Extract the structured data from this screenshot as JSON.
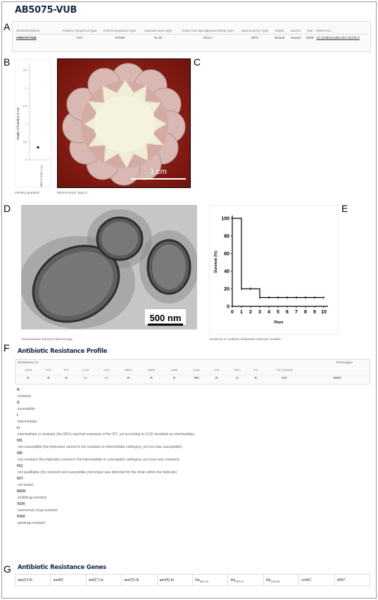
{
  "title": "AB5075-VUB",
  "panels": {
    "a": "A",
    "b": "B",
    "c": "C",
    "d": "D",
    "e": "E",
    "f": "F",
    "g": "G"
  },
  "strain_table": {
    "headers": [
      "Strain/GenBank",
      "Pasteur Sequence type",
      "Oxford Sequence type",
      "Capsule locus type",
      "Outer core lipooligosaccharide type",
      "Macrocolony Type",
      "Origin",
      "Source",
      "Year",
      "Reference"
    ],
    "row": {
      "strain": "AB5075-VUB",
      "pasteur": "ST1",
      "oxford": "ST945",
      "capsule": "KL25",
      "outer_core": "OCL2",
      "macrocolony": "MTC",
      "origin": "clinical",
      "source": "wound",
      "year": "2008",
      "reference": "10.1038/s41396-021-01179-2"
    }
  },
  "density_plot": {
    "y_label": "Height of band(s) in cm",
    "y_ticks": [
      "2,5",
      "2",
      "1,5",
      "1",
      "0,5",
      "0"
    ],
    "x_label": "AB5075-VUB (1 ml)",
    "point_value": 0.35,
    "caption": "Density gradient."
  },
  "macrocolony": {
    "scale_label": "1 cm",
    "caption": "Macrocolony Type C."
  },
  "tem": {
    "scale_label": "500 nm",
    "caption": "Transmission Electron Microscopy."
  },
  "chart_data": {
    "type": "line",
    "title": "",
    "xlabel": "Days",
    "ylabel": "Survival (%)",
    "x": [
      0,
      1,
      2,
      3,
      4,
      5,
      6,
      7,
      8,
      9,
      10
    ],
    "values": [
      100,
      20,
      20,
      10,
      10,
      10,
      10,
      10,
      10,
      10,
      10
    ],
    "xlim": [
      0,
      10
    ],
    "ylim": [
      0,
      100
    ],
    "x_ticks": [
      "0",
      "1",
      "2",
      "3",
      "4",
      "5",
      "6",
      "7",
      "8",
      "9",
      "10"
    ],
    "y_ticks": [
      "0",
      "20",
      "40",
      "60",
      "80",
      "100"
    ],
    "step": true,
    "caption_prefix": "Virulence in ",
    "caption_italic": "Galleria mellonella",
    "caption_suffix": " infection models."
  },
  "resistance": {
    "heading": "Antibiotic Resistance Profile",
    "resistance_to": "Resistance to:",
    "phenotype_label": "Phenotype",
    "antibiotics": [
      "AMS",
      "PIP",
      "PIT",
      "CAZ",
      "AZT",
      "MER",
      "GEN",
      "AMK",
      "COL",
      "CIP",
      "TGC",
      "TS",
      "TET (Etest)"
    ],
    "values": [
      "R",
      "R",
      "R",
      "I+",
      "I+",
      "R",
      "R",
      "R",
      "NR",
      "R",
      "S",
      "R",
      "N/T"
    ],
    "phenotype": "MDR",
    "legend": [
      {
        "code": "R",
        "text": "resistant"
      },
      {
        "code": "S",
        "text": "susceptible"
      },
      {
        "code": "I",
        "text": "intermediate"
      },
      {
        "code": "I+",
        "text": "intermediate or resistant (the MICs reached maximum of the KIT, yet according to CLSI classified as intermediate)"
      },
      {
        "code": "NS",
        "text": "non susceptible (the triplicates varried in the resistant or intermediate cathegory, yet non was susceptible)"
      },
      {
        "code": "NR",
        "text": "non resistant (the triplicates varried in the intermediate or susceptible cathegory, yet none was resistant)"
      },
      {
        "code": "NQ",
        "text": "not qualifiable (the resistant and susceptible phenotype was detected for the strain within the triplicate)"
      },
      {
        "code": "N/T",
        "text": "not tested"
      },
      {
        "code": "MDR",
        "text": "multidrug-resistant"
      },
      {
        "code": "XDR",
        "text": "extensively drug-resistant"
      },
      {
        "code": "PDR",
        "text": "pandrug-resistant"
      }
    ]
  },
  "genes": {
    "heading": "Antibiotic Resistance Genes",
    "items": [
      {
        "base": "aac(6')-Ib",
        "sub": ""
      },
      {
        "base": "aadA2",
        "sub": ""
      },
      {
        "base": "ant(2'')-Ia",
        "sub": ""
      },
      {
        "base": "aph(3')-Ib",
        "sub": ""
      },
      {
        "base": "aph(6)-Id",
        "sub": ""
      },
      {
        "base": "bla",
        "sub": "ADC-25"
      },
      {
        "base": "bla",
        "sub": "GES-11"
      },
      {
        "base": "bla",
        "sub": "OXA-69"
      },
      {
        "base": "cmlA1",
        "sub": ""
      },
      {
        "base": "dfrA7",
        "sub": ""
      }
    ]
  }
}
